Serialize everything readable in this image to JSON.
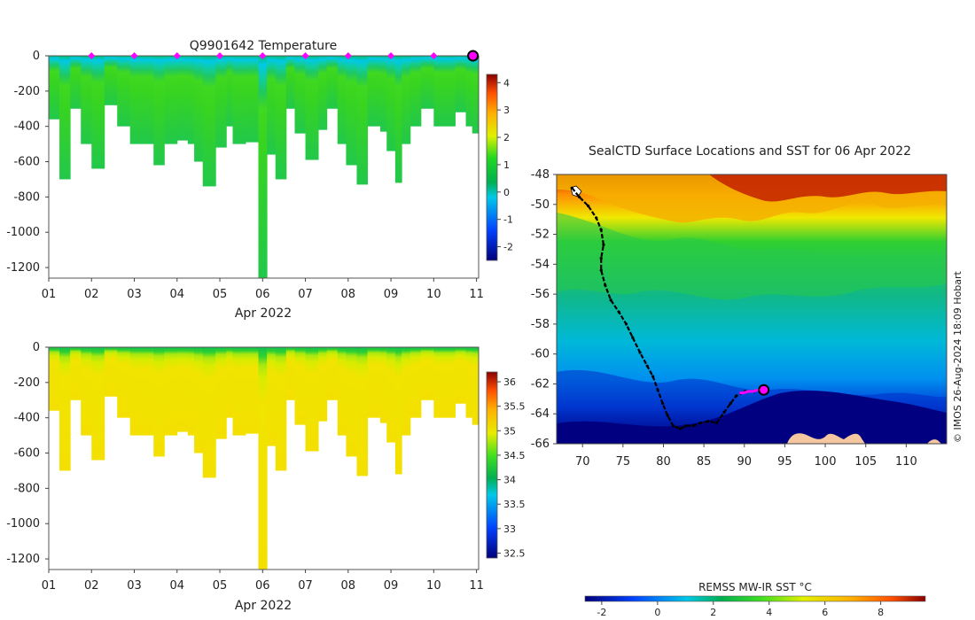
{
  "colors": {
    "profile_marker": "#ff00ff",
    "last_position_marker": "#ff00ff",
    "track": "#000000",
    "land": "#f5c7a0"
  },
  "chart_data": [
    {
      "type": "heatmap",
      "title": "Q9901642  Temperature",
      "xlabel": "Apr 2022",
      "ylabel": "",
      "x_ticks": [
        "01",
        "02",
        "03",
        "04",
        "05",
        "06",
        "07",
        "08",
        "09",
        "10",
        "11"
      ],
      "y_ticks": [
        "0",
        "-200",
        "-400",
        "-600",
        "-800",
        "-1000",
        "-1200"
      ],
      "xlim": [
        1,
        11.05
      ],
      "ylim": [
        -1260,
        0
      ],
      "colorbar": {
        "min": -2.5,
        "max": 4.3,
        "ticks": [
          "-2",
          "-1",
          "0",
          "1",
          "2",
          "3",
          "4"
        ]
      },
      "profile_markers_days": [
        2,
        3,
        4,
        5,
        6,
        7,
        8,
        9,
        10
      ],
      "last_marker_day": 11,
      "profiles": [
        {
          "day": 1.0,
          "depth": 360
        },
        {
          "day": 1.25,
          "depth": 700
        },
        {
          "day": 1.5,
          "depth": 300
        },
        {
          "day": 1.75,
          "depth": 500
        },
        {
          "day": 2.0,
          "depth": 640
        },
        {
          "day": 2.3,
          "depth": 280
        },
        {
          "day": 2.6,
          "depth": 400
        },
        {
          "day": 2.9,
          "depth": 500
        },
        {
          "day": 3.2,
          "depth": 500
        },
        {
          "day": 3.45,
          "depth": 620
        },
        {
          "day": 3.7,
          "depth": 500
        },
        {
          "day": 4.0,
          "depth": 480
        },
        {
          "day": 4.25,
          "depth": 500
        },
        {
          "day": 4.4,
          "depth": 600
        },
        {
          "day": 4.6,
          "depth": 740
        },
        {
          "day": 4.9,
          "depth": 520
        },
        {
          "day": 5.15,
          "depth": 400
        },
        {
          "day": 5.3,
          "depth": 500
        },
        {
          "day": 5.6,
          "depth": 490
        },
        {
          "day": 5.9,
          "depth": 1260
        },
        {
          "day": 6.1,
          "depth": 560
        },
        {
          "day": 6.3,
          "depth": 700
        },
        {
          "day": 6.55,
          "depth": 300
        },
        {
          "day": 6.75,
          "depth": 440
        },
        {
          "day": 7.0,
          "depth": 590
        },
        {
          "day": 7.3,
          "depth": 420
        },
        {
          "day": 7.5,
          "depth": 300
        },
        {
          "day": 7.75,
          "depth": 500
        },
        {
          "day": 7.95,
          "depth": 620
        },
        {
          "day": 8.2,
          "depth": 730
        },
        {
          "day": 8.45,
          "depth": 400
        },
        {
          "day": 8.75,
          "depth": 430
        },
        {
          "day": 8.9,
          "depth": 540
        },
        {
          "day": 9.1,
          "depth": 720
        },
        {
          "day": 9.25,
          "depth": 500
        },
        {
          "day": 9.45,
          "depth": 400
        },
        {
          "day": 9.7,
          "depth": 300
        },
        {
          "day": 10.0,
          "depth": 400
        },
        {
          "day": 10.5,
          "depth": 320
        },
        {
          "day": 10.75,
          "depth": 400
        },
        {
          "day": 10.9,
          "depth": 440
        }
      ]
    },
    {
      "type": "heatmap",
      "title": "",
      "xlabel": "Apr 2022",
      "ylabel": "",
      "x_ticks": [
        "01",
        "02",
        "03",
        "04",
        "05",
        "06",
        "07",
        "08",
        "09",
        "10",
        "11"
      ],
      "y_ticks": [
        "0",
        "-200",
        "-400",
        "-600",
        "-800",
        "-1000",
        "-1200"
      ],
      "xlim": [
        1,
        11.05
      ],
      "ylim": [
        -1260,
        0
      ],
      "colorbar": {
        "min": 32.4,
        "max": 36.2,
        "ticks": [
          "32.5",
          "33",
          "33.5",
          "34",
          "34.5",
          "35",
          "35.5",
          "36"
        ]
      }
    },
    {
      "type": "heatmap",
      "title": "SealCTD Surface Locations and SST for 06 Apr 2022",
      "xlabel": "",
      "ylabel": "",
      "x_ticks": [
        "70",
        "75",
        "80",
        "85",
        "90",
        "95",
        "100",
        "105",
        "110"
      ],
      "y_ticks": [
        "-48",
        "-50",
        "-52",
        "-54",
        "-56",
        "-58",
        "-60",
        "-62",
        "-64",
        "-66"
      ],
      "xlim": [
        66.8,
        115.0
      ],
      "ylim": [
        -66,
        -48
      ],
      "colorbar": {
        "label": "REMSS MW-IR SST °C",
        "min": -2.6,
        "max": 9.6,
        "ticks": [
          "-2",
          "0",
          "2",
          "4",
          "6",
          "8"
        ]
      },
      "credit": "© IMOS 26-Aug-2024 18:09 Hobart",
      "track_lon": [
        68.7,
        69.6,
        70.7,
        71.7,
        72.3,
        72.6,
        72.3,
        72.3,
        72.8,
        73.5,
        74.5,
        75.4,
        76.2,
        77.1,
        78.0,
        78.7,
        79.3,
        79.9,
        80.5,
        81.2,
        82.1,
        82.8,
        83.7,
        84.6,
        85.5,
        86.6,
        87.5,
        88.3,
        89.0,
        90.1,
        91.2,
        92.2
      ],
      "track_lat": [
        -48.9,
        -49.5,
        -50.1,
        -50.9,
        -51.7,
        -52.7,
        -53.6,
        -54.4,
        -55.4,
        -56.4,
        -57.2,
        -58.0,
        -58.9,
        -59.9,
        -60.8,
        -61.5,
        -62.4,
        -63.3,
        -64.1,
        -64.8,
        -65.0,
        -64.8,
        -64.8,
        -64.6,
        -64.5,
        -64.6,
        -63.9,
        -63.3,
        -62.8,
        -62.5,
        -62.5,
        -62.4
      ],
      "recent_lon": [
        89.4,
        89.9,
        90.5,
        91.1,
        91.7
      ],
      "recent_lat": [
        -62.6,
        -62.6,
        -62.5,
        -62.5,
        -62.4
      ],
      "last_position": {
        "lon": 92.4,
        "lat": -62.4
      }
    }
  ]
}
